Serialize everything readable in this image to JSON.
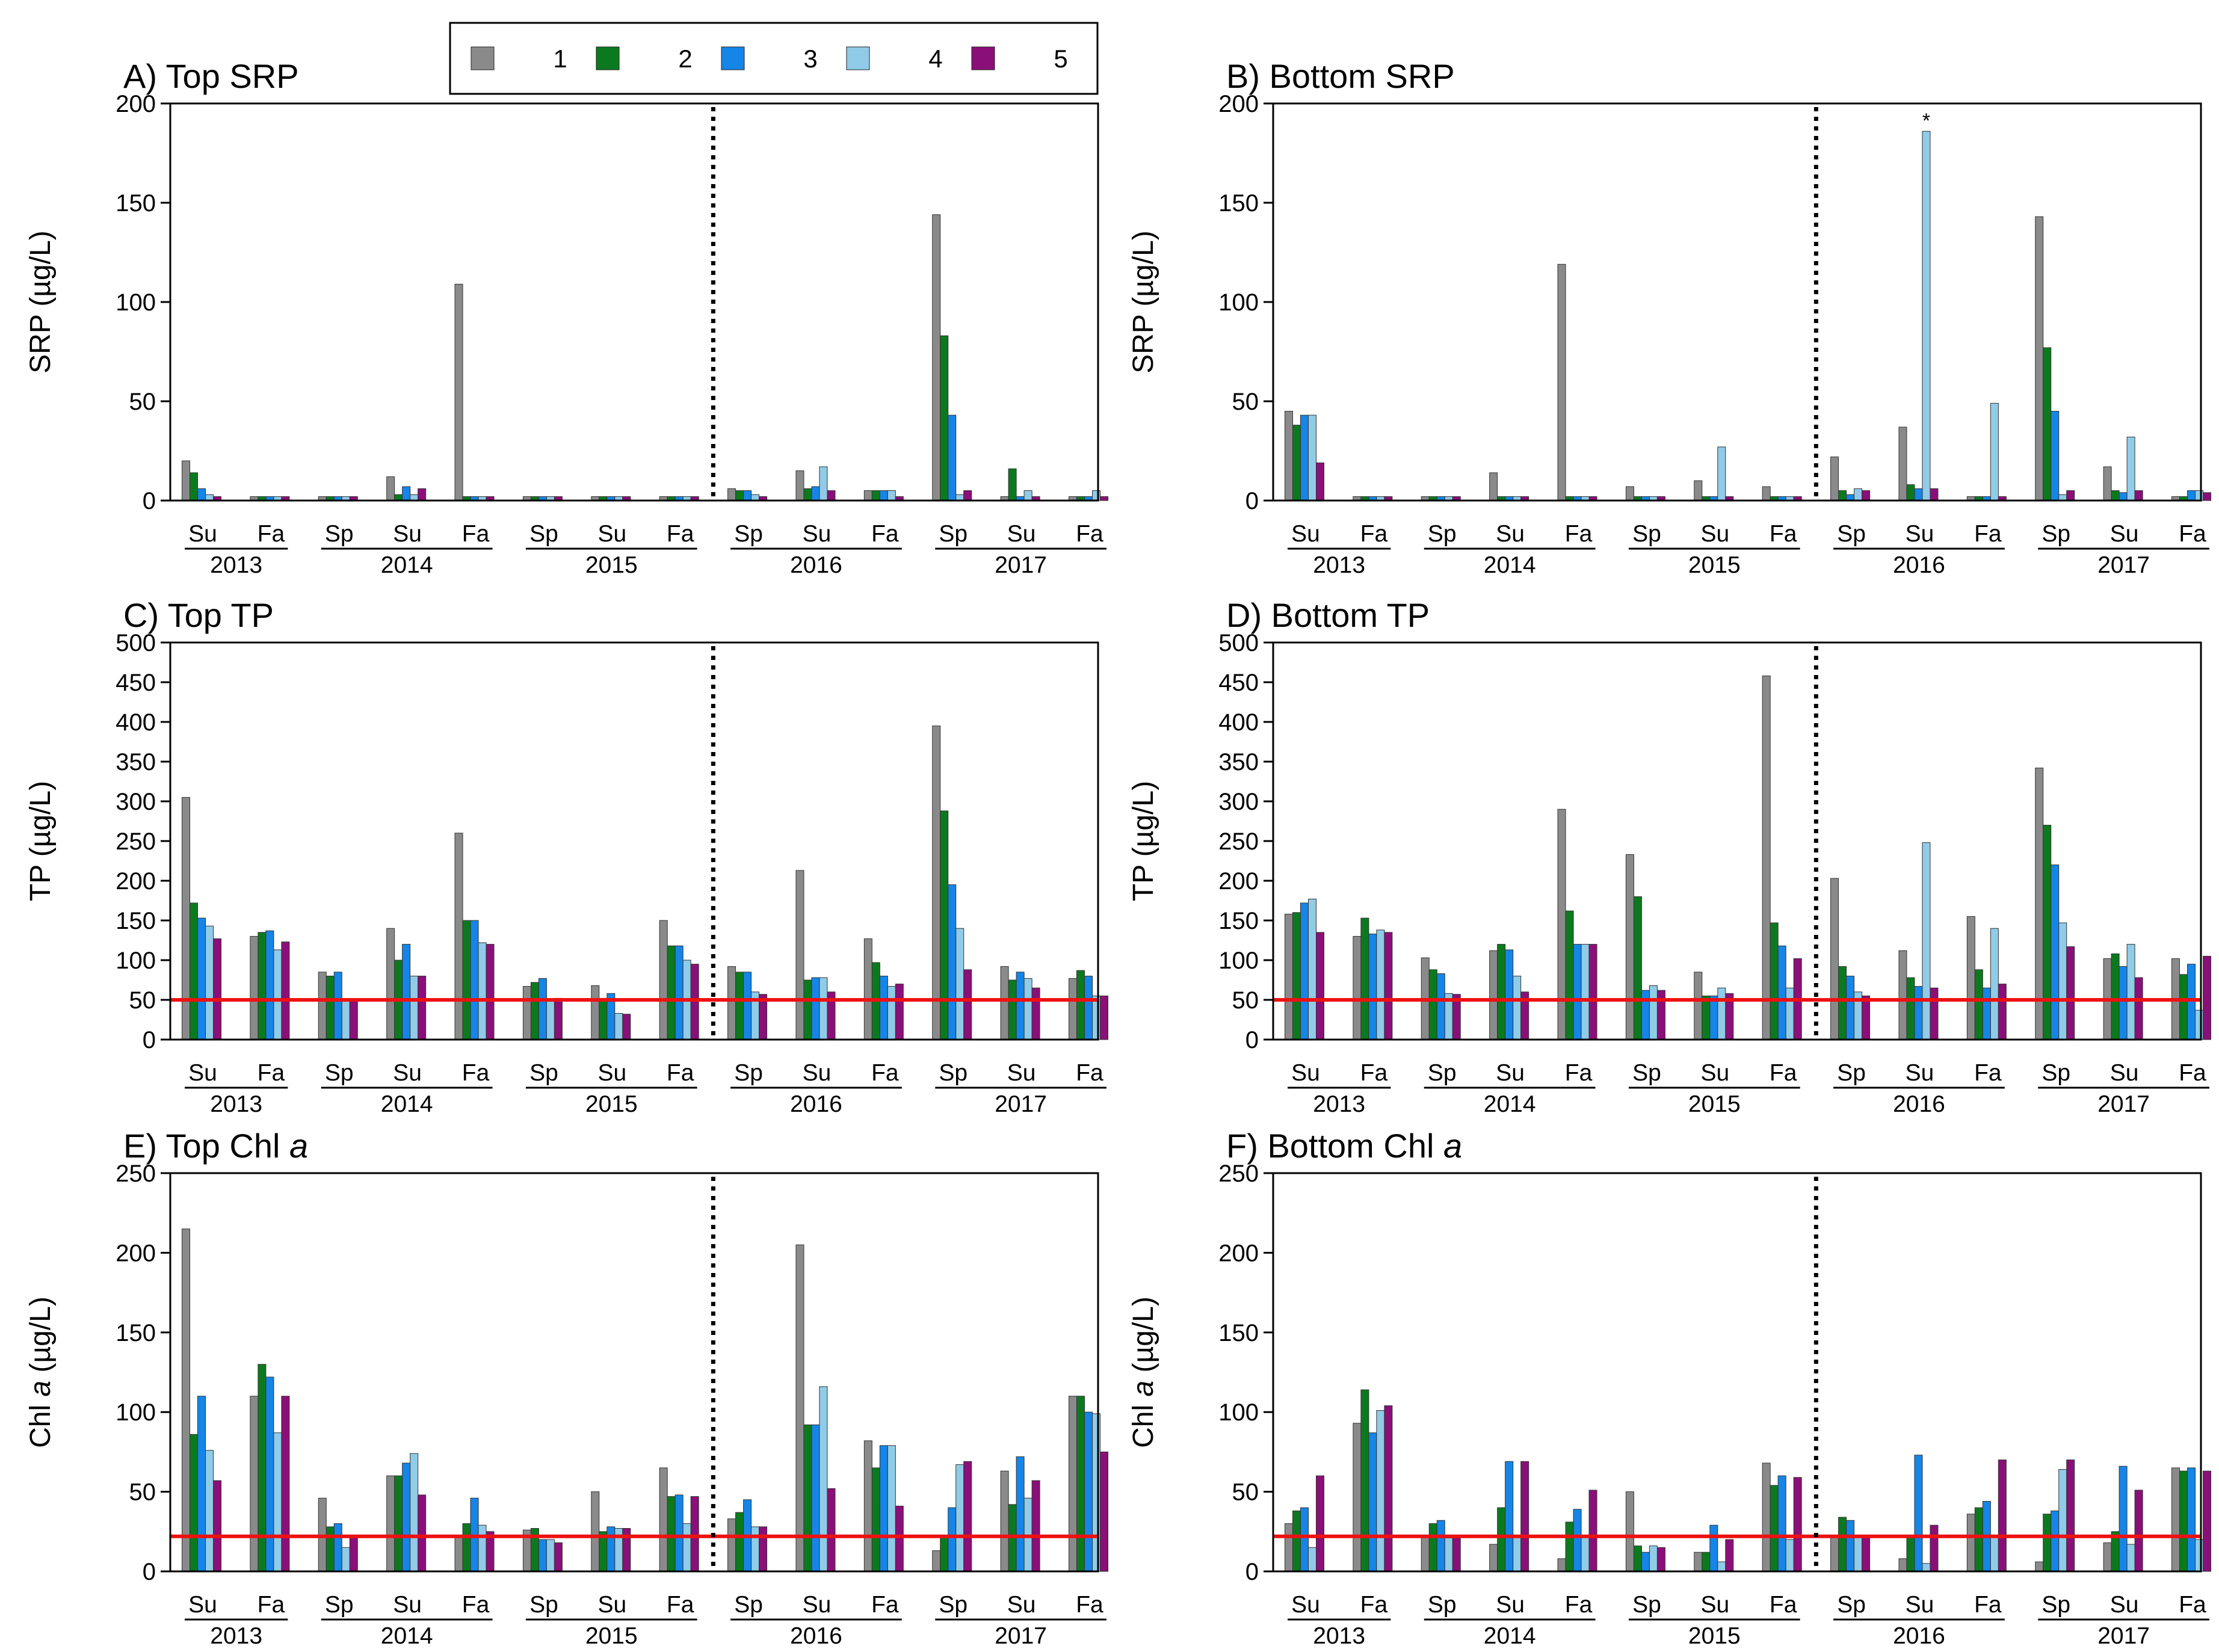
{
  "legend": {
    "entries": [
      {
        "label": "1",
        "color": "#8a8a8a"
      },
      {
        "label": "2",
        "color": "#0b7a1e"
      },
      {
        "label": "3",
        "color": "#1585e8"
      },
      {
        "label": "4",
        "color": "#90cbe8"
      },
      {
        "label": "5",
        "color": "#8b0f78"
      }
    ]
  },
  "chart_data": [
    {
      "id": "A",
      "type": "bar",
      "title": "A) Top SRP",
      "ylabel": "SRP (µg/L)",
      "ylim": [
        0,
        200
      ],
      "yticks": [
        0,
        50,
        100,
        150,
        200
      ],
      "seasons": [
        "Su",
        "Fa",
        "Sp",
        "Su",
        "Fa",
        "Sp",
        "Su",
        "Fa",
        "Sp",
        "Su",
        "Fa",
        "Sp",
        "Su",
        "Fa"
      ],
      "years": [
        {
          "label": "2013",
          "from": 0,
          "to": 1
        },
        {
          "label": "2014",
          "from": 2,
          "to": 4
        },
        {
          "label": "2015",
          "from": 5,
          "to": 7
        },
        {
          "label": "2016",
          "from": 8,
          "to": 10
        },
        {
          "label": "2017",
          "from": 11,
          "to": 13
        }
      ],
      "divider_after": 7,
      "series": [
        {
          "name": "1",
          "values": [
            20,
            2,
            2,
            12,
            109,
            2,
            2,
            2,
            6,
            15,
            5,
            144,
            2,
            2
          ]
        },
        {
          "name": "2",
          "values": [
            14,
            2,
            2,
            3,
            2,
            2,
            2,
            2,
            5,
            6,
            5,
            83,
            16,
            2
          ]
        },
        {
          "name": "3",
          "values": [
            6,
            2,
            2,
            7,
            2,
            2,
            2,
            2,
            5,
            7,
            5,
            43,
            2,
            2
          ]
        },
        {
          "name": "4",
          "values": [
            3,
            2,
            2,
            3,
            2,
            2,
            2,
            2,
            3,
            17,
            5,
            3,
            5,
            5
          ]
        },
        {
          "name": "5",
          "values": [
            2,
            2,
            2,
            6,
            2,
            2,
            2,
            2,
            2,
            5,
            2,
            5,
            2,
            2
          ]
        }
      ]
    },
    {
      "id": "B",
      "type": "bar",
      "title": "B) Bottom SRP",
      "ylabel": "SRP (µg/L)",
      "ylim": [
        0,
        200
      ],
      "yticks": [
        0,
        50,
        100,
        150,
        200
      ],
      "seasons": [
        "Su",
        "Fa",
        "Sp",
        "Su",
        "Fa",
        "Sp",
        "Su",
        "Fa",
        "Sp",
        "Su",
        "Fa",
        "Sp",
        "Su",
        "Fa"
      ],
      "years": [
        {
          "label": "2013",
          "from": 0,
          "to": 1
        },
        {
          "label": "2014",
          "from": 2,
          "to": 4
        },
        {
          "label": "2015",
          "from": 5,
          "to": 7
        },
        {
          "label": "2016",
          "from": 8,
          "to": 10
        },
        {
          "label": "2017",
          "from": 11,
          "to": 13
        }
      ],
      "divider_after": 7,
      "annotation": {
        "text": "*",
        "category": 9,
        "series": 3
      },
      "series": [
        {
          "name": "1",
          "values": [
            45,
            2,
            2,
            14,
            119,
            7,
            10,
            7,
            22,
            37,
            2,
            143,
            17,
            2
          ]
        },
        {
          "name": "2",
          "values": [
            38,
            2,
            2,
            2,
            2,
            2,
            2,
            2,
            5,
            8,
            2,
            77,
            5,
            2
          ]
        },
        {
          "name": "3",
          "values": [
            43,
            2,
            2,
            2,
            2,
            2,
            2,
            2,
            3,
            6,
            2,
            45,
            4,
            5
          ]
        },
        {
          "name": "4",
          "values": [
            43,
            2,
            2,
            2,
            2,
            2,
            27,
            2,
            6,
            186,
            49,
            3,
            32,
            5
          ]
        },
        {
          "name": "5",
          "values": [
            19,
            2,
            2,
            2,
            2,
            2,
            2,
            2,
            5,
            6,
            2,
            5,
            5,
            4
          ]
        }
      ]
    },
    {
      "id": "C",
      "type": "bar",
      "title": "C) Top TP",
      "ylabel": "TP (µg/L)",
      "ylim": [
        0,
        500
      ],
      "yticks": [
        0,
        50,
        100,
        150,
        200,
        250,
        300,
        350,
        400,
        450,
        500
      ],
      "seasons": [
        "Su",
        "Fa",
        "Sp",
        "Su",
        "Fa",
        "Sp",
        "Su",
        "Fa",
        "Sp",
        "Su",
        "Fa",
        "Sp",
        "Su",
        "Fa"
      ],
      "years": [
        {
          "label": "2013",
          "from": 0,
          "to": 1
        },
        {
          "label": "2014",
          "from": 2,
          "to": 4
        },
        {
          "label": "2015",
          "from": 5,
          "to": 7
        },
        {
          "label": "2016",
          "from": 8,
          "to": 10
        },
        {
          "label": "2017",
          "from": 11,
          "to": 13
        }
      ],
      "divider_after": 7,
      "threshold": 50,
      "series": [
        {
          "name": "1",
          "values": [
            305,
            130,
            85,
            140,
            260,
            67,
            68,
            150,
            92,
            213,
            127,
            395,
            92,
            77
          ]
        },
        {
          "name": "2",
          "values": [
            172,
            135,
            80,
            100,
            150,
            72,
            52,
            118,
            85,
            75,
            97,
            288,
            75,
            87
          ]
        },
        {
          "name": "3",
          "values": [
            153,
            137,
            85,
            120,
            150,
            77,
            58,
            118,
            85,
            78,
            80,
            195,
            85,
            80
          ]
        },
        {
          "name": "4",
          "values": [
            143,
            113,
            50,
            80,
            122,
            50,
            33,
            100,
            60,
            78,
            67,
            140,
            77,
            55
          ]
        },
        {
          "name": "5",
          "values": [
            127,
            123,
            48,
            80,
            120,
            52,
            32,
            95,
            57,
            60,
            70,
            88,
            65,
            55
          ]
        }
      ]
    },
    {
      "id": "D",
      "type": "bar",
      "title": "D) Bottom TP",
      "ylabel": "TP (µg/L)",
      "ylim": [
        0,
        500
      ],
      "yticks": [
        0,
        50,
        100,
        150,
        200,
        250,
        300,
        350,
        400,
        450,
        500
      ],
      "seasons": [
        "Su",
        "Fa",
        "Sp",
        "Su",
        "Fa",
        "Sp",
        "Su",
        "Fa",
        "Sp",
        "Su",
        "Fa",
        "Sp",
        "Su",
        "Fa"
      ],
      "years": [
        {
          "label": "2013",
          "from": 0,
          "to": 1
        },
        {
          "label": "2014",
          "from": 2,
          "to": 4
        },
        {
          "label": "2015",
          "from": 5,
          "to": 7
        },
        {
          "label": "2016",
          "from": 8,
          "to": 10
        },
        {
          "label": "2017",
          "from": 11,
          "to": 13
        }
      ],
      "divider_after": 7,
      "threshold": 50,
      "series": [
        {
          "name": "1",
          "values": [
            158,
            130,
            103,
            112,
            290,
            233,
            85,
            458,
            203,
            112,
            155,
            342,
            102,
            102
          ]
        },
        {
          "name": "2",
          "values": [
            160,
            153,
            88,
            120,
            162,
            180,
            55,
            147,
            92,
            78,
            88,
            270,
            108,
            82
          ]
        },
        {
          "name": "3",
          "values": [
            172,
            133,
            83,
            113,
            120,
            62,
            55,
            118,
            80,
            67,
            65,
            220,
            92,
            95
          ]
        },
        {
          "name": "4",
          "values": [
            177,
            138,
            58,
            80,
            120,
            68,
            65,
            65,
            60,
            248,
            140,
            147,
            120,
            37
          ]
        },
        {
          "name": "5",
          "values": [
            135,
            135,
            57,
            60,
            120,
            62,
            58,
            102,
            55,
            65,
            70,
            117,
            78,
            105
          ]
        }
      ]
    },
    {
      "id": "E",
      "type": "bar",
      "title": "E) Top Chl ",
      "title_italic": "a",
      "ylabel": "Chl ",
      "ylabel_italic": "a",
      "ylabel_unit": " (µg/L)",
      "ylim": [
        0,
        250
      ],
      "yticks": [
        0,
        50,
        100,
        150,
        200,
        250
      ],
      "seasons": [
        "Su",
        "Fa",
        "Sp",
        "Su",
        "Fa",
        "Sp",
        "Su",
        "Fa",
        "Sp",
        "Su",
        "Fa",
        "Sp",
        "Su",
        "Fa"
      ],
      "years": [
        {
          "label": "2013",
          "from": 0,
          "to": 1
        },
        {
          "label": "2014",
          "from": 2,
          "to": 4
        },
        {
          "label": "2015",
          "from": 5,
          "to": 7
        },
        {
          "label": "2016",
          "from": 8,
          "to": 10
        },
        {
          "label": "2017",
          "from": 11,
          "to": 13
        }
      ],
      "divider_after": 7,
      "threshold": 22,
      "series": [
        {
          "name": "1",
          "values": [
            215,
            110,
            46,
            60,
            22,
            26,
            50,
            65,
            33,
            205,
            82,
            13,
            63,
            110
          ]
        },
        {
          "name": "2",
          "values": [
            86,
            130,
            28,
            60,
            30,
            27,
            25,
            47,
            37,
            92,
            65,
            22,
            42,
            110
          ]
        },
        {
          "name": "3",
          "values": [
            110,
            122,
            30,
            68,
            46,
            20,
            28,
            48,
            45,
            92,
            79,
            40,
            72,
            100
          ]
        },
        {
          "name": "4",
          "values": [
            76,
            87,
            15,
            74,
            29,
            20,
            27,
            30,
            28,
            116,
            79,
            67,
            46,
            99
          ]
        },
        {
          "name": "5",
          "values": [
            57,
            110,
            22,
            48,
            25,
            18,
            27,
            47,
            28,
            52,
            41,
            69,
            57,
            75
          ]
        }
      ]
    },
    {
      "id": "F",
      "type": "bar",
      "title": "F) Bottom Chl ",
      "title_italic": "a",
      "ylabel": "Chl ",
      "ylabel_italic": "a",
      "ylabel_unit": " (µg/L)",
      "ylim": [
        0,
        250
      ],
      "yticks": [
        0,
        50,
        100,
        150,
        200,
        250
      ],
      "seasons": [
        "Su",
        "Fa",
        "Sp",
        "Su",
        "Fa",
        "Sp",
        "Su",
        "Fa",
        "Sp",
        "Su",
        "Fa",
        "Sp",
        "Su",
        "Fa"
      ],
      "years": [
        {
          "label": "2013",
          "from": 0,
          "to": 1
        },
        {
          "label": "2014",
          "from": 2,
          "to": 4
        },
        {
          "label": "2015",
          "from": 5,
          "to": 7
        },
        {
          "label": "2016",
          "from": 8,
          "to": 10
        },
        {
          "label": "2017",
          "from": 11,
          "to": 13
        }
      ],
      "divider_after": 7,
      "threshold": 22,
      "series": [
        {
          "name": "1",
          "values": [
            30,
            93,
            22,
            17,
            8,
            50,
            12,
            68,
            22,
            8,
            36,
            6,
            18,
            65
          ]
        },
        {
          "name": "2",
          "values": [
            38,
            114,
            30,
            40,
            31,
            16,
            12,
            54,
            34,
            22,
            40,
            36,
            25,
            63
          ]
        },
        {
          "name": "3",
          "values": [
            40,
            87,
            32,
            69,
            39,
            12,
            29,
            60,
            32,
            73,
            44,
            38,
            66,
            65
          ]
        },
        {
          "name": "4",
          "values": [
            15,
            101,
            21,
            22,
            22,
            16,
            6,
            20,
            22,
            5,
            22,
            64,
            17,
            20
          ]
        },
        {
          "name": "5",
          "values": [
            60,
            104,
            21,
            69,
            51,
            15,
            20,
            59,
            21,
            29,
            70,
            70,
            51,
            63
          ]
        }
      ]
    }
  ]
}
